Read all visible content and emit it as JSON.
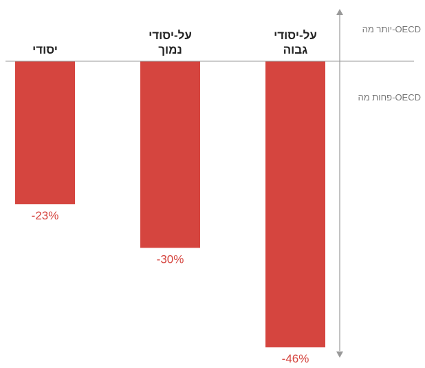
{
  "chart_data": {
    "type": "bar",
    "categories": [
      [
        "יסודי"
      ],
      [
        "על-יסודי",
        "נמוך"
      ],
      [
        "על-יסודי",
        "גבוה"
      ]
    ],
    "values": [
      -23,
      -30,
      -46
    ],
    "value_labels": [
      "-23%",
      "-30%",
      "-46%"
    ],
    "ylim": [
      -46,
      0
    ],
    "axis_annotations": {
      "above": "יותר מה-OECD",
      "below": "פחות מה-OECD"
    },
    "colors": {
      "bar": "#d5453f",
      "value_label": "#d5453f",
      "baseline": "#999999",
      "axis": "#999999"
    },
    "grid": false,
    "legend": "none"
  }
}
